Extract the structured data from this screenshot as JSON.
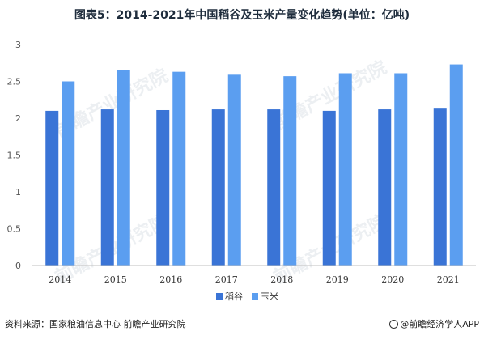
{
  "title": "图表5：2014-2021年中国稻谷及玉米产量变化趋势(单位：亿吨)",
  "source": "资料来源：国家粮油信息中心 前瞻产业研究院",
  "brand": "@前瞻经济学人APP",
  "watermark": "前瞻产业研究院",
  "colors": {
    "rice": "#3a74d6",
    "corn": "#5b9ef0",
    "axis": "#bfbfbf",
    "text": "#555555"
  },
  "chart_data": {
    "type": "bar",
    "categories": [
      "2014",
      "2015",
      "2016",
      "2017",
      "2018",
      "2019",
      "2020",
      "2021"
    ],
    "series": [
      {
        "name": "稻谷",
        "values": [
          2.1,
          2.12,
          2.11,
          2.12,
          2.12,
          2.1,
          2.12,
          2.13
        ]
      },
      {
        "name": "玉米",
        "values": [
          2.5,
          2.65,
          2.63,
          2.59,
          2.57,
          2.61,
          2.61,
          2.73
        ]
      }
    ],
    "yticks": [
      "0",
      "0.5",
      "1",
      "1.5",
      "2",
      "2.5",
      "3"
    ],
    "ylim": [
      0,
      3
    ],
    "grid": false,
    "legend": "bottom-center"
  }
}
